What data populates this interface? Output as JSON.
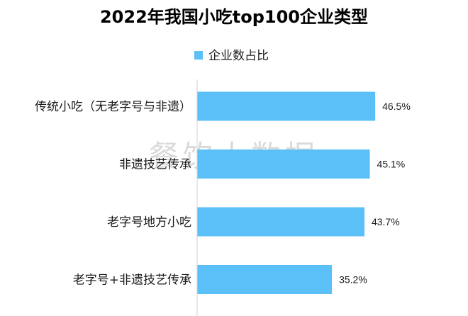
{
  "watermark": "餐饮大数据",
  "chart_data": {
    "type": "bar",
    "orientation": "horizontal",
    "title": "2022年我国小吃top100企业类型",
    "categories": [
      "传统小吃（无老字号与非遗）",
      "非遗技艺传承",
      "老字号地方小吃",
      "老字号+非遗技艺传承"
    ],
    "series": [
      {
        "name": "企业数占比",
        "values": [
          46.5,
          45.1,
          43.7,
          35.2
        ],
        "labels": [
          "46.5%",
          "45.1%",
          "43.7%",
          "35.2%"
        ],
        "color": "#5BBFF8"
      }
    ],
    "xlim": [
      0,
      50
    ],
    "legend": "top",
    "grid": false
  }
}
